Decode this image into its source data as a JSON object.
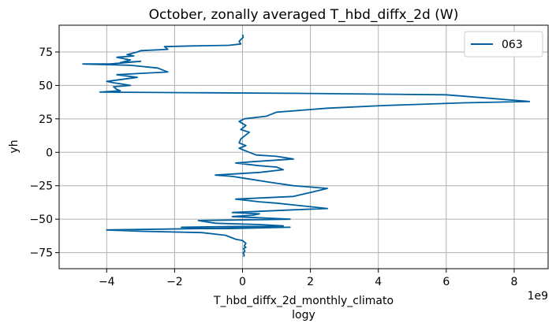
{
  "chart_data": {
    "type": "line",
    "title": "October, zonally averaged T_hbd_diffx_2d (W)",
    "xlabel": "T_hbd_diffx_2d_monthly_climato",
    "xlabel2": "logy",
    "ylabel": "yh",
    "x_offset_label": "1e9",
    "xlim": [
      -5.4,
      9.0
    ],
    "ylim": [
      -87,
      95
    ],
    "grid": true,
    "legend": "top-right",
    "x_ticks": [
      -4,
      -2,
      0,
      2,
      4,
      6,
      8
    ],
    "x_tick_labels": [
      "−4",
      "−2",
      "0",
      "2",
      "4",
      "6",
      "8"
    ],
    "y_ticks": [
      75,
      50,
      25,
      0,
      -25,
      -50,
      -75
    ],
    "y_tick_labels": [
      "75",
      "50",
      "25",
      "0",
      "−25",
      "−50",
      "−75"
    ],
    "series": [
      {
        "name": "063",
        "color": "#005f9e",
        "x": [
          0.0,
          0.02,
          -0.1,
          -0.05,
          -0.4,
          -1.5,
          -2.3,
          -2.2,
          -3.0,
          -3.1,
          -3.4,
          -3.2,
          -3.7,
          -3.3,
          -3.6,
          -3.0,
          -3.9,
          -4.7,
          -3.3,
          -2.5,
          -2.2,
          -3.0,
          -3.7,
          -3.1,
          -4.0,
          -3.8,
          -3.3,
          -3.8,
          -3.7,
          -3.6,
          -4.2,
          2.0,
          6.0,
          8.45,
          6.5,
          4.2,
          2.5,
          1.0,
          0.8,
          0.7,
          0.05,
          -0.1,
          0.1,
          -0.05,
          0.2,
          0.1,
          -0.05,
          -0.1,
          0.1,
          -0.1,
          0.2,
          0.4,
          1.0,
          1.5,
          0.3,
          -0.2,
          0.5,
          1.0,
          1.2,
          0.5,
          -0.8,
          -0.3,
          0.2,
          0.7,
          1.5,
          2.5,
          2.0,
          1.5,
          -0.2,
          0.5,
          1.0,
          2.5,
          1.5,
          -0.3,
          0.5,
          0.3,
          -0.3,
          1.4,
          -1.3,
          -0.8,
          0.5,
          1.2,
          -1.8,
          -0.4,
          1.4,
          -4.0,
          -3.0,
          -1.2,
          -0.5,
          -0.2,
          0.0,
          0.1,
          0.05,
          0.1,
          0.03,
          0.05,
          0.07,
          0.02,
          0.05,
          0.03
        ],
        "y": [
          88,
          86,
          83,
          81,
          80,
          79.5,
          79,
          77,
          76,
          75,
          73,
          72,
          71,
          69,
          67,
          68,
          66,
          66,
          65,
          63,
          60,
          59,
          58,
          56,
          53,
          52,
          50,
          49,
          47,
          46,
          45,
          44,
          43,
          38,
          37,
          35,
          33,
          30,
          28,
          27,
          25,
          23,
          20,
          17,
          15,
          13,
          10,
          7,
          5,
          3,
          0,
          -2,
          -3,
          -5,
          -7,
          -8,
          -10,
          -11,
          -13,
          -15,
          -17,
          -18,
          -20,
          -22,
          -25,
          -27,
          -30,
          -33,
          -35,
          -37,
          -38,
          -42,
          -43,
          -45,
          -46,
          -47,
          -48,
          -50,
          -51,
          -53,
          -54,
          -55,
          -56,
          -57,
          -56,
          -58,
          -59,
          -60,
          -62,
          -65,
          -66,
          -68,
          -70,
          -71,
          -72,
          -73,
          -74,
          -75,
          -77,
          -78
        ]
      }
    ]
  }
}
